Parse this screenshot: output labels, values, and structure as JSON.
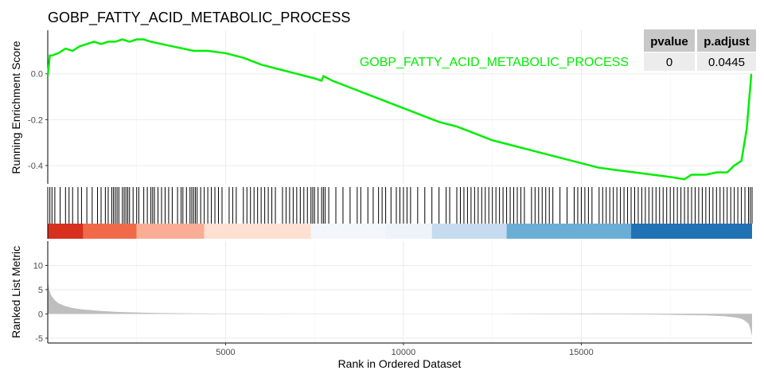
{
  "chart_data": {
    "type": "line",
    "title": "GOBP_FATTY_ACID_METABOLIC_PROCESS",
    "series_color": "#00ee00",
    "xlabel": "Rank in Ordered Dataset",
    "xlim": [
      1,
      19800
    ],
    "x_ticks": [
      5000,
      10000,
      15000
    ],
    "x_tick_labels": [
      "5000",
      "10000",
      "15000"
    ],
    "panels": [
      {
        "name": "running-enrichment-score",
        "ylabel": "Running Enrichment Score",
        "ylim": [
          -0.48,
          0.19
        ],
        "y_ticks": [
          0.0,
          -0.2,
          -0.4
        ],
        "y_tick_labels": [
          "0.0",
          "-0.2",
          "-0.4"
        ],
        "series": [
          {
            "name": "GOBP_FATTY_ACID_METABOLIC_PROCESS",
            "x": [
              1,
              60,
              120,
              300,
              500,
              700,
              900,
              1100,
              1300,
              1500,
              1700,
              1900,
              2100,
              2300,
              2500,
              2700,
              2900,
              3200,
              3500,
              3800,
              4100,
              4500,
              5000,
              5500,
              6000,
              6500,
              7000,
              7500,
              7700,
              7750,
              8000,
              8500,
              9000,
              9500,
              10000,
              10500,
              11000,
              11500,
              12000,
              12500,
              13000,
              13500,
              14000,
              14500,
              15000,
              15500,
              16000,
              16500,
              17000,
              17500,
              17900,
              18100,
              18500,
              18800,
              19100,
              19300,
              19500,
              19650,
              19700,
              19780
            ],
            "y": [
              -0.01,
              0.08,
              0.08,
              0.09,
              0.11,
              0.1,
              0.12,
              0.13,
              0.14,
              0.13,
              0.14,
              0.14,
              0.15,
              0.14,
              0.15,
              0.15,
              0.14,
              0.13,
              0.12,
              0.11,
              0.1,
              0.1,
              0.09,
              0.07,
              0.04,
              0.02,
              0.0,
              -0.02,
              -0.03,
              -0.01,
              -0.03,
              -0.06,
              -0.09,
              -0.12,
              -0.15,
              -0.18,
              -0.21,
              -0.23,
              -0.26,
              -0.29,
              -0.31,
              -0.33,
              -0.35,
              -0.37,
              -0.39,
              -0.41,
              -0.42,
              -0.43,
              -0.44,
              -0.45,
              -0.46,
              -0.44,
              -0.44,
              -0.43,
              -0.43,
              -0.4,
              -0.38,
              -0.24,
              -0.15,
              0.0
            ]
          }
        ]
      },
      {
        "name": "hit-bars",
        "hit_positions": [
          1,
          60,
          120,
          200,
          350,
          500,
          600,
          700,
          850,
          950,
          1100,
          1250,
          1400,
          1500,
          1620,
          1700,
          1800,
          1850,
          1900,
          1950,
          2000,
          2100,
          2150,
          2200,
          2250,
          2300,
          2400,
          2500,
          2560,
          2700,
          2800,
          2900,
          2950,
          3000,
          3100,
          3200,
          3300,
          3400,
          3500,
          3650,
          3750,
          3800,
          3900,
          4000,
          4050,
          4100,
          4150,
          4200,
          4300,
          4400,
          4500,
          4600,
          4700,
          4800,
          4900,
          5100,
          5200,
          5300,
          5500,
          5600,
          5700,
          5800,
          5900,
          6000,
          6100,
          6200,
          6300,
          6400,
          6600,
          6700,
          6800,
          6900,
          7000,
          7100,
          7200,
          7300,
          7400,
          7450,
          7500,
          7600,
          7700,
          7750,
          7800,
          7900,
          8100,
          8300,
          8500,
          8700,
          8800,
          9000,
          9150,
          9300,
          9400,
          9500,
          9650,
          9800,
          9900,
          10000,
          10100,
          10200,
          10400,
          10600,
          10800,
          11000,
          11200,
          11300,
          11500,
          11600,
          11700,
          11800,
          11900,
          12000,
          12100,
          12200,
          12300,
          12400,
          12500,
          12600,
          12700,
          12800,
          12900,
          13000,
          13100,
          13200,
          13300,
          13400,
          13600,
          13700,
          13800,
          13900,
          14000,
          14100,
          14200,
          14400,
          14600,
          14800,
          14900,
          15000,
          15100,
          15200,
          15300,
          15500,
          15600,
          15700,
          15800,
          15900,
          16000,
          16100,
          16200,
          16300,
          16400,
          16500,
          16600,
          16700,
          16800,
          16900,
          17000,
          17100,
          17200,
          17300,
          17400,
          17500,
          17600,
          17700,
          17800,
          17900,
          18000,
          18100,
          18200,
          18300,
          18400,
          18500,
          18600,
          18700,
          18800,
          18900,
          19000,
          19100,
          19200,
          19300,
          19400,
          19500,
          19600,
          19700,
          19750,
          19800
        ],
        "color_bands": [
          {
            "from": 1,
            "to": 1000,
            "color": "#d7301f"
          },
          {
            "from": 1000,
            "to": 2500,
            "color": "#f06a4a"
          },
          {
            "from": 2500,
            "to": 4400,
            "color": "#f9ad94"
          },
          {
            "from": 4400,
            "to": 7400,
            "color": "#fde0d2"
          },
          {
            "from": 7400,
            "to": 9500,
            "color": "#f3f6fb"
          },
          {
            "from": 9500,
            "to": 10800,
            "color": "#eef3fa"
          },
          {
            "from": 10800,
            "to": 12900,
            "color": "#c6dbef"
          },
          {
            "from": 12900,
            "to": 16400,
            "color": "#6aaed6"
          },
          {
            "from": 16400,
            "to": 19800,
            "color": "#2171b5"
          }
        ]
      },
      {
        "name": "ranked-list-metric",
        "ylabel": "Ranked List Metric",
        "ylim": [
          -6,
          15
        ],
        "y_ticks": [
          10,
          5,
          0,
          -5
        ],
        "y_tick_labels": [
          "10",
          "5",
          "0",
          "-5"
        ],
        "color": "#bebebe",
        "x": [
          1,
          20,
          50,
          100,
          200,
          300,
          500,
          700,
          1000,
          1500,
          2000,
          2500,
          3000,
          4000,
          5000,
          7000,
          9000,
          11000,
          12900,
          13200,
          14000,
          16000,
          17000,
          18000,
          18500,
          19000,
          19300,
          19500,
          19600,
          19700,
          19750,
          19800
        ],
        "y": [
          9.0,
          6.0,
          4.8,
          3.8,
          2.8,
          2.2,
          1.6,
          1.2,
          0.9,
          0.6,
          0.4,
          0.3,
          0.2,
          0.12,
          0.06,
          0.02,
          0.0,
          0.0,
          0.0,
          -0.02,
          -0.05,
          -0.1,
          -0.15,
          -0.25,
          -0.3,
          -0.45,
          -0.7,
          -1.0,
          -1.4,
          -2.0,
          -3.0,
          -4.6
        ]
      }
    ],
    "table": {
      "headers": [
        "pvalue",
        "p.adjust"
      ],
      "rows": [
        [
          "0",
          "0.0445"
        ]
      ]
    }
  }
}
